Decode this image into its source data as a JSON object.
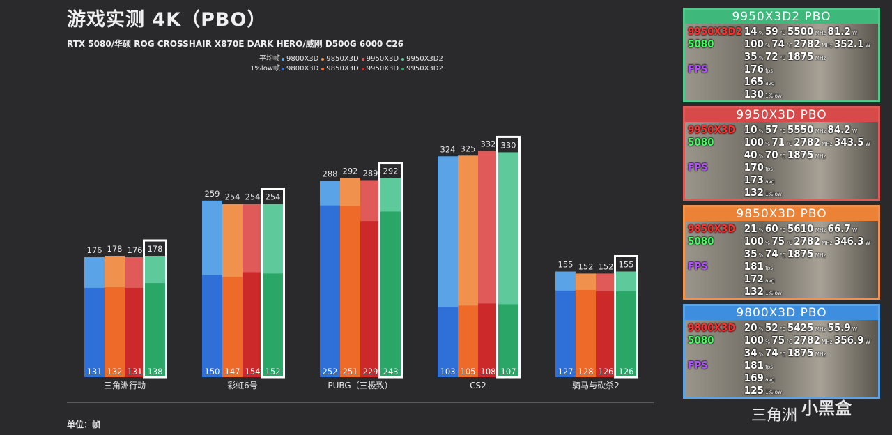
{
  "title": "游戏实测 4K（PBO）",
  "subtitle": "RTX 5080/华硕 ROG CROSSHAIR X870E DARK HERO/威刚 D500G 6000 C26",
  "unit_label": "单位：帧",
  "legend": {
    "avg_label": "平均帧",
    "low_label": "1%low帧",
    "avg_items": [
      {
        "name": "9800X3D",
        "color": "#5aa3e6"
      },
      {
        "name": "9850X3D",
        "color": "#f0924e"
      },
      {
        "name": "9950X3D",
        "color": "#e05a5a"
      },
      {
        "name": "9950X3D2",
        "color": "#5ec99a"
      }
    ],
    "low_items": [
      {
        "name": "9800X3D",
        "color": "#2f6fd8"
      },
      {
        "name": "9850X3D",
        "color": "#ee6a28"
      },
      {
        "name": "9950X3D",
        "color": "#cc2a2a"
      },
      {
        "name": "9950X3D2",
        "color": "#2aa766"
      }
    ]
  },
  "chart_data": {
    "type": "bar",
    "categories": [
      "三角洲行动",
      "彩虹6号",
      "PUBG（三极致）",
      "CS2",
      "骑马与砍杀2"
    ],
    "series": [
      {
        "name": "9800X3D",
        "avg": [
          176,
          259,
          288,
          324,
          155
        ],
        "low": [
          131,
          150,
          252,
          103,
          127
        ],
        "avg_color": "#5aa3e6",
        "low_color": "#2f6fd8"
      },
      {
        "name": "9850X3D",
        "avg": [
          178,
          254,
          292,
          325,
          152
        ],
        "low": [
          132,
          147,
          251,
          105,
          128
        ],
        "avg_color": "#f0924e",
        "low_color": "#ee6a28"
      },
      {
        "name": "9950X3D",
        "avg": [
          176,
          254,
          289,
          332,
          152
        ],
        "low": [
          131,
          154,
          229,
          108,
          126
        ],
        "avg_color": "#e05a5a",
        "low_color": "#cc2a2a"
      },
      {
        "name": "9950X3D2",
        "avg": [
          178,
          254,
          292,
          330,
          155
        ],
        "low": [
          138,
          152,
          243,
          107,
          126
        ],
        "avg_color": "#5ec99a",
        "low_color": "#2aa766"
      }
    ],
    "highlight_series": "9950X3D2",
    "ylim": [
      0,
      400
    ]
  },
  "panels": [
    {
      "title": "9950X3D2   PBO",
      "border_color": "#52c98c",
      "header_color": "#3fb87c",
      "cpu_label": "9950X3D2",
      "cpu_usage": "14",
      "cpu_temp": "59",
      "cpu_clock": "5500",
      "cpu_power": "81.2",
      "gpu_label": "5080",
      "gpu_usage": "100",
      "gpu_temp": "74",
      "gpu_clock": "2782",
      "gpu_power": "352.1",
      "mem_usage": "35",
      "mem_temp": "72",
      "mem_clock": "1875",
      "fps_label": "FPS",
      "fps": "176",
      "avg": "165",
      "low": "130"
    },
    {
      "title": "9950X3D   PBO",
      "border_color": "#e05a5a",
      "header_color": "#d84a4a",
      "cpu_label": "9950X3D",
      "cpu_usage": "10",
      "cpu_temp": "57",
      "cpu_clock": "5550",
      "cpu_power": "84.2",
      "gpu_label": "5080",
      "gpu_usage": "100",
      "gpu_temp": "71",
      "gpu_clock": "2782",
      "gpu_power": "343.5",
      "mem_usage": "40",
      "mem_temp": "70",
      "mem_clock": "1875",
      "fps_label": "FPS",
      "fps": "170",
      "avg": "173",
      "low": "132"
    },
    {
      "title": "9850X3D   PBO",
      "border_color": "#f0924e",
      "header_color": "#ec8236",
      "cpu_label": "9850X3D",
      "cpu_usage": "21",
      "cpu_temp": "60",
      "cpu_clock": "5610",
      "cpu_power": "66.7",
      "gpu_label": "5080",
      "gpu_usage": "100",
      "gpu_temp": "75",
      "gpu_clock": "2782",
      "gpu_power": "346.3",
      "mem_usage": "35",
      "mem_temp": "74",
      "mem_clock": "1875",
      "fps_label": "FPS",
      "fps": "181",
      "avg": "172",
      "low": "132"
    },
    {
      "title": "9800X3D   PBO",
      "border_color": "#5aa3e6",
      "header_color": "#3d8ede",
      "cpu_label": "9800X3D",
      "cpu_usage": "20",
      "cpu_temp": "52",
      "cpu_clock": "5425",
      "cpu_power": "55.9",
      "gpu_label": "5080",
      "gpu_usage": "100",
      "gpu_temp": "75",
      "gpu_clock": "2782",
      "gpu_power": "356.9",
      "mem_usage": "34",
      "mem_temp": "74",
      "mem_clock": "1875",
      "fps_label": "FPS",
      "fps": "181",
      "avg": "169",
      "low": "125"
    }
  ],
  "watermark": {
    "text": "三角洲",
    "brand": "小黑盒"
  }
}
